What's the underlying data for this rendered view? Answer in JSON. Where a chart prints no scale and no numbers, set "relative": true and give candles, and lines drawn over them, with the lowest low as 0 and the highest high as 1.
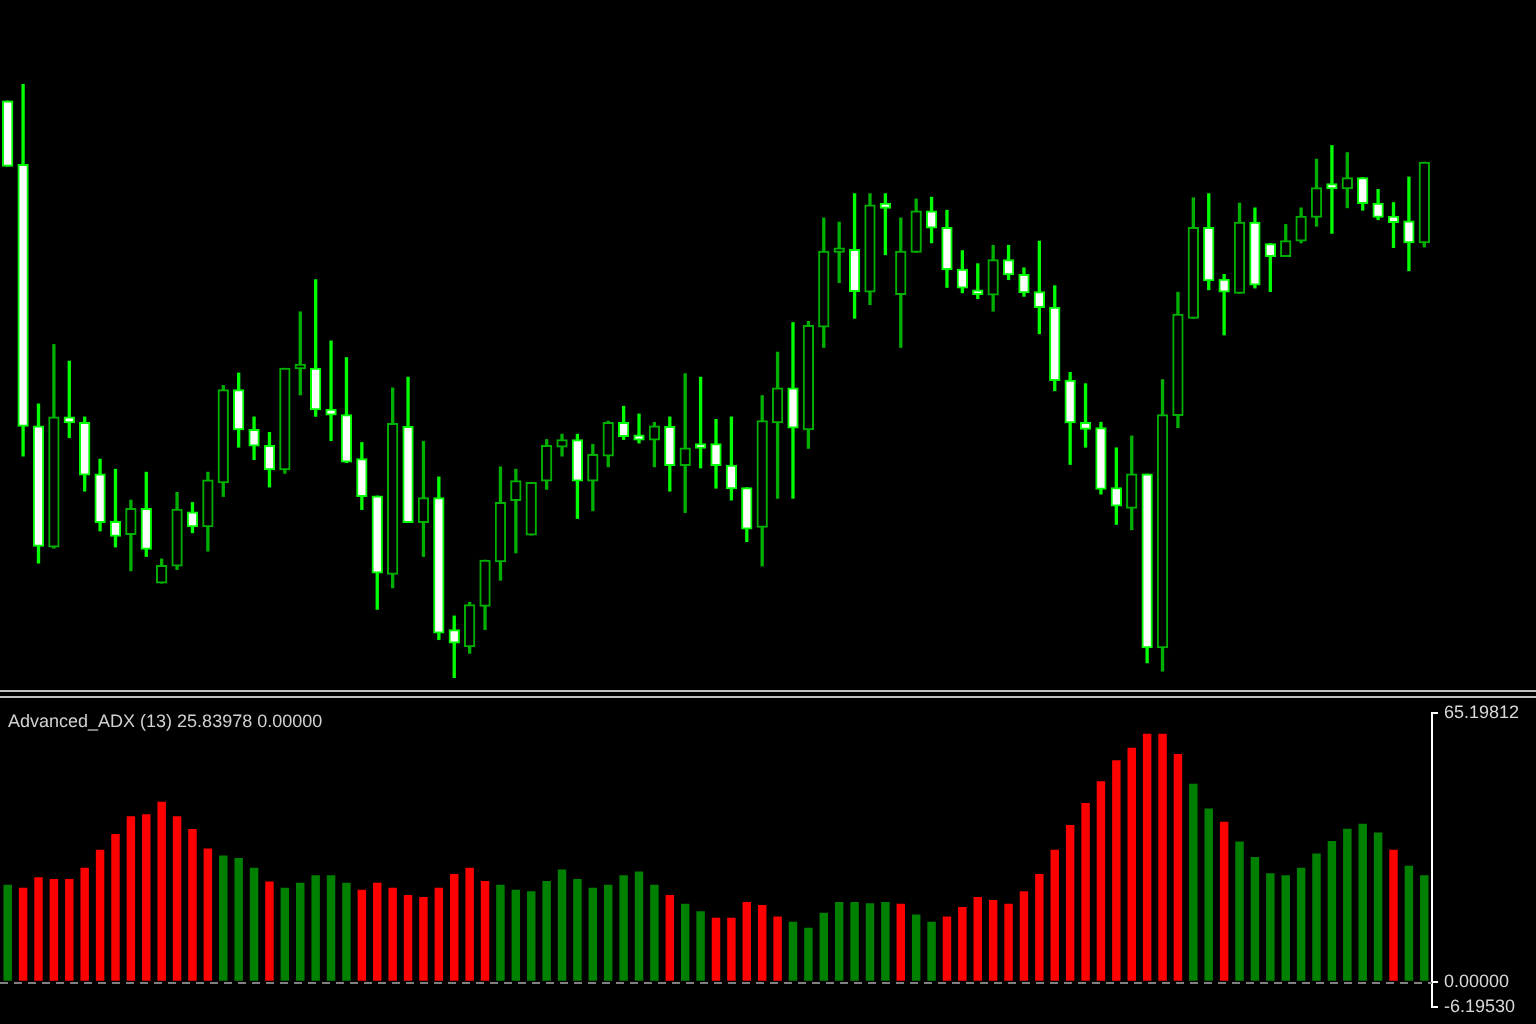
{
  "chart_data": [
    {
      "type": "candlestick",
      "relative": true,
      "tick_labels": false,
      "categories": [
        null,
        null,
        null,
        null,
        null,
        null,
        null,
        null,
        null,
        null,
        null,
        null,
        null,
        null,
        null,
        null,
        null,
        null,
        null,
        null,
        null,
        null,
        null,
        null,
        null,
        null,
        null,
        null,
        null,
        null,
        null,
        null,
        null,
        null,
        null,
        null,
        null,
        null,
        null,
        null,
        null,
        null,
        null,
        null,
        null,
        null,
        null,
        null,
        null,
        null,
        null,
        null,
        null,
        null,
        null,
        null,
        null,
        null,
        null,
        null,
        null,
        null,
        null,
        null,
        null,
        null,
        null,
        null,
        null,
        null,
        null,
        null,
        null,
        null,
        null,
        null,
        null,
        null,
        null,
        null,
        null,
        null,
        null,
        null,
        null,
        null,
        null,
        null,
        null,
        null,
        null,
        null,
        null
      ],
      "ohlc": [
        [
          0.971,
          0.971,
          0.862,
          0.862
        ],
        [
          0.864,
          1,
          0.374,
          0.424
        ],
        [
          0.424,
          0.461,
          0.194,
          0.222
        ],
        [
          0.221,
          0.561,
          0.219,
          0.439
        ],
        [
          0.439,
          0.533,
          0.405,
          0.43
        ],
        [
          0.43,
          0.439,
          0.315,
          0.342
        ],
        [
          0.343,
          0.368,
          0.248,
          0.262
        ],
        [
          0.263,
          0.351,
          0.221,
          0.239
        ],
        [
          0.242,
          0.299,
          0.181,
          0.285
        ],
        [
          0.285,
          0.346,
          0.205,
          0.217
        ],
        [
          0.16,
          0.2,
          0.16,
          0.189
        ],
        [
          0.189,
          0.312,
          0.183,
          0.284
        ],
        [
          0.279,
          0.295,
          0.245,
          0.255
        ],
        [
          0.255,
          0.346,
          0.214,
          0.333
        ],
        [
          0.329,
          0.492,
          0.306,
          0.485
        ],
        [
          0.485,
          0.513,
          0.389,
          0.418
        ],
        [
          0.418,
          0.439,
          0.368,
          0.391
        ],
        [
          0.391,
          0.413,
          0.322,
          0.351
        ],
        [
          0.351,
          0.521,
          0.345,
          0.521
        ],
        [
          0.521,
          0.616,
          0.477,
          0.521
        ],
        [
          0.521,
          0.67,
          0.441,
          0.452
        ],
        [
          0.452,
          0.567,
          0.4,
          0.443
        ],
        [
          0.443,
          0.539,
          0.363,
          0.364
        ],
        [
          0.369,
          0.396,
          0.284,
          0.306
        ],
        [
          0.306,
          0.306,
          0.116,
          0.177
        ],
        [
          0.175,
          0.488,
          0.152,
          0.428
        ],
        [
          0.423,
          0.506,
          0.262,
          0.262
        ],
        [
          0.262,
          0.398,
          0.205,
          0.303
        ],
        [
          0.303,
          0.338,
          0.065,
          0.076
        ],
        [
          0.081,
          0.104,
          0,
          0.059
        ],
        [
          0.053,
          0.127,
          0.042,
          0.123
        ],
        [
          0.121,
          0.198,
          0.082,
          0.198
        ],
        [
          0.196,
          0.355,
          0.165,
          0.295
        ],
        [
          0.299,
          0.351,
          0.211,
          0.332
        ],
        [
          0.241,
          0.329,
          0.241,
          0.329
        ],
        [
          0.332,
          0.401,
          0.318,
          0.391
        ],
        [
          0.389,
          0.41,
          0.374,
          0.401
        ],
        [
          0.401,
          0.41,
          0.269,
          0.332
        ],
        [
          0.332,
          0.393,
          0.282,
          0.376
        ],
        [
          0.374,
          0.432,
          0.356,
          0.43
        ],
        [
          0.43,
          0.457,
          0.402,
          0.407
        ],
        [
          0.409,
          0.444,
          0.396,
          0.401
        ],
        [
          0.401,
          0.43,
          0.356,
          0.424
        ],
        [
          0.423,
          0.439,
          0.315,
          0.358
        ],
        [
          0.358,
          0.512,
          0.279,
          0.387
        ],
        [
          0.394,
          0.506,
          0.354,
          0.387
        ],
        [
          0.394,
          0.435,
          0.32,
          0.358
        ],
        [
          0.358,
          0.439,
          0.3,
          0.319
        ],
        [
          0.32,
          0.32,
          0.23,
          0.251
        ],
        [
          0.254,
          0.475,
          0.189,
          0.433
        ],
        [
          0.43,
          0.548,
          0.303,
          0.488
        ],
        [
          0.488,
          0.598,
          0.303,
          0.421
        ],
        [
          0.418,
          0.6,
          0.387,
          0.593
        ],
        [
          0.591,
          0.774,
          0.557,
          0.718
        ],
        [
          0.717,
          0.767,
          0.666,
          0.721
        ],
        [
          0.721,
          0.815,
          0.606,
          0.651
        ],
        [
          0.65,
          0.815,
          0.629,
          0.796
        ],
        [
          0.799,
          0.815,
          0.713,
          0.791
        ],
        [
          0.646,
          0.774,
          0.557,
          0.718
        ],
        [
          0.717,
          0.806,
          0.717,
          0.786
        ],
        [
          0.786,
          0.809,
          0.733,
          0.758
        ],
        [
          0.758,
          0.787,
          0.658,
          0.688
        ],
        [
          0.688,
          0.719,
          0.649,
          0.657
        ],
        [
          0.653,
          0.697,
          0.639,
          0.646
        ],
        [
          0.645,
          0.728,
          0.618,
          0.704
        ],
        [
          0.704,
          0.728,
          0.671,
          0.679
        ],
        [
          0.679,
          0.69,
          0.643,
          0.649
        ],
        [
          0.65,
          0.735,
          0.58,
          0.624
        ],
        [
          0.624,
          0.66,
          0.484,
          0.501
        ],
        [
          0.501,
          0.514,
          0.36,
          0.43
        ],
        [
          0.43,
          0.495,
          0.389,
          0.419
        ],
        [
          0.421,
          0.43,
          0.31,
          0.318
        ],
        [
          0.32,
          0.387,
          0.259,
          0.29
        ],
        [
          0.286,
          0.407,
          0.25,
          0.343
        ],
        [
          0.343,
          0.343,
          0.026,
          0.051
        ],
        [
          0.051,
          0.502,
          0.012,
          0.443
        ],
        [
          0.442,
          0.649,
          0.422,
          0.612
        ],
        [
          0.606,
          0.808,
          0.606,
          0.758
        ],
        [
          0.758,
          0.815,
          0.654,
          0.669
        ],
        [
          0.671,
          0.679,
          0.578,
          0.65
        ],
        [
          0.648,
          0.799,
          0.648,
          0.767
        ],
        [
          0.767,
          0.791,
          0.657,
          0.662
        ],
        [
          0.731,
          0.731,
          0.651,
          0.71
        ],
        [
          0.71,
          0.763,
          0.71,
          0.736
        ],
        [
          0.736,
          0.791,
          0.733,
          0.777
        ],
        [
          0.776,
          0.873,
          0.761,
          0.825
        ],
        [
          0.832,
          0.896,
          0.749,
          0.824
        ],
        [
          0.824,
          0.884,
          0.792,
          0.842
        ],
        [
          0.842,
          0.842,
          0.788,
          0.799
        ],
        [
          0.799,
          0.822,
          0.772,
          0.776
        ],
        [
          0.777,
          0.8,
          0.725,
          0.767
        ],
        [
          0.769,
          0.843,
          0.686,
          0.733
        ],
        [
          0.733,
          0.868,
          0.726,
          0.868
        ]
      ],
      "colors": [
        "#00ff00",
        "#00ff00",
        "#00ff00",
        "#00b000",
        "#00ff00",
        "#00ff00",
        "#00ff00",
        "#00ff00",
        "#00b000",
        "#00ff00",
        "#00b000",
        "#00b000",
        "#00ff00",
        "#00b000",
        "#00b000",
        "#00ff00",
        "#00ff00",
        "#00ff00",
        "#00b000",
        "#00b000",
        "#00ff00",
        "#00ff00",
        "#00ff00",
        "#00ff00",
        "#00ff00",
        "#00b000",
        "#00ff00",
        "#00b000",
        "#00ff00",
        "#00ff00",
        "#00b000",
        "#00b000",
        "#00b000",
        "#00b000",
        "#00b000",
        "#00b000",
        "#00b000",
        "#00ff00",
        "#00b000",
        "#00b000",
        "#00ff00",
        "#00ff00",
        "#00b000",
        "#00ff00",
        "#00b000",
        "#00ff00",
        "#00ff00",
        "#00ff00",
        "#00ff00",
        "#00b000",
        "#00b000",
        "#00ff00",
        "#00b000",
        "#00b000",
        "#00b000",
        "#00ff00",
        "#00b000",
        "#00ff00",
        "#00b000",
        "#00b000",
        "#00ff00",
        "#00ff00",
        "#00ff00",
        "#00ff00",
        "#00b000",
        "#00ff00",
        "#00ff00",
        "#00ff00",
        "#00ff00",
        "#00ff00",
        "#00ff00",
        "#00ff00",
        "#00ff00",
        "#00b000",
        "#00ff00",
        "#00b000",
        "#00b000",
        "#00b000",
        "#00ff00",
        "#00ff00",
        "#00b000",
        "#00ff00",
        "#00ff00",
        "#00b000",
        "#00b000",
        "#00b000",
        "#00ff00",
        "#00b000",
        "#00ff00",
        "#00ff00",
        "#00ff00",
        "#00ff00",
        "#00b000"
      ]
    },
    {
      "type": "bar",
      "title": "Advanced_ADX (13) 25.83978 0.00000",
      "tick_labels": "y",
      "categories": [
        null,
        null,
        null,
        null,
        null,
        null,
        null,
        null,
        null,
        null,
        null,
        null,
        null,
        null,
        null,
        null,
        null,
        null,
        null,
        null,
        null,
        null,
        null,
        null,
        null,
        null,
        null,
        null,
        null,
        null,
        null,
        null,
        null,
        null,
        null,
        null,
        null,
        null,
        null,
        null,
        null,
        null,
        null,
        null,
        null,
        null,
        null,
        null,
        null,
        null,
        null,
        null,
        null,
        null,
        null,
        null,
        null,
        null,
        null,
        null,
        null,
        null,
        null,
        null,
        null,
        null,
        null,
        null,
        null,
        null,
        null,
        null,
        null,
        null,
        null,
        null,
        null,
        null,
        null,
        null,
        null,
        null,
        null,
        null,
        null,
        null,
        null,
        null,
        null,
        null,
        null,
        null,
        null
      ],
      "values": [
        23.5,
        22.8,
        25.3,
        24.9,
        24.9,
        27.6,
        32,
        35.8,
        40.1,
        40.6,
        43.6,
        40.1,
        37,
        32.3,
        30.6,
        30,
        27.6,
        24.3,
        22.8,
        24,
        25.8,
        25.8,
        24,
        22.3,
        24,
        22.8,
        21,
        20.5,
        22.8,
        26.1,
        27.6,
        24.4,
        23.5,
        22.3,
        21.9,
        24.4,
        27.2,
        24.9,
        22.8,
        23.5,
        25.8,
        26.7,
        23.5,
        21,
        18.9,
        17.1,
        15.5,
        15.5,
        19.3,
        18.6,
        15.8,
        14.5,
        13.1,
        16.7,
        19.3,
        19.3,
        19,
        19.3,
        18.9,
        16.3,
        14.5,
        15.8,
        18.1,
        20.5,
        19.8,
        18.9,
        21.9,
        26.1,
        32,
        38,
        43.3,
        48.6,
        53.7,
        56.7,
        60.1,
        60.1,
        55.2,
        48,
        42,
        38.8,
        34,
        30.2,
        26.3,
        25.8,
        27.6,
        31.1,
        34.1,
        37.1,
        38.3,
        36.2,
        32,
        28.1,
        25.8
      ],
      "colors": [
        "#008000",
        "#ff0000",
        "#ff0000",
        "#ff0000",
        "#ff0000",
        "#ff0000",
        "#ff0000",
        "#ff0000",
        "#ff0000",
        "#ff0000",
        "#ff0000",
        "#ff0000",
        "#ff0000",
        "#ff0000",
        "#008000",
        "#008000",
        "#008000",
        "#ff0000",
        "#008000",
        "#008000",
        "#008000",
        "#008000",
        "#008000",
        "#ff0000",
        "#ff0000",
        "#ff0000",
        "#ff0000",
        "#ff0000",
        "#ff0000",
        "#ff0000",
        "#ff0000",
        "#ff0000",
        "#008000",
        "#008000",
        "#008000",
        "#008000",
        "#008000",
        "#008000",
        "#008000",
        "#008000",
        "#008000",
        "#008000",
        "#008000",
        "#ff0000",
        "#008000",
        "#008000",
        "#ff0000",
        "#ff0000",
        "#ff0000",
        "#ff0000",
        "#ff0000",
        "#008000",
        "#008000",
        "#008000",
        "#008000",
        "#008000",
        "#008000",
        "#008000",
        "#ff0000",
        "#008000",
        "#008000",
        "#ff0000",
        "#ff0000",
        "#ff0000",
        "#ff0000",
        "#ff0000",
        "#ff0000",
        "#ff0000",
        "#ff0000",
        "#ff0000",
        "#ff0000",
        "#ff0000",
        "#ff0000",
        "#ff0000",
        "#ff0000",
        "#ff0000",
        "#ff0000",
        "#008000",
        "#008000",
        "#ff0000",
        "#008000",
        "#008000",
        "#008000",
        "#008000",
        "#008000",
        "#008000",
        "#008000",
        "#008000",
        "#008000",
        "#008000",
        "#ff0000",
        "#008000",
        "#008000"
      ],
      "ylim": [
        -6.1953,
        65.19812
      ],
      "yticks": [
        {
          "value": 65.19812,
          "label": "65.19812"
        },
        {
          "value": 0,
          "label": "0.00000"
        },
        {
          "value": -6.1953,
          "label": "-6.19530"
        }
      ],
      "ref_lines": [
        {
          "axis": "y",
          "value": 0,
          "color": "#808080",
          "line_style": "dashed"
        }
      ]
    }
  ]
}
